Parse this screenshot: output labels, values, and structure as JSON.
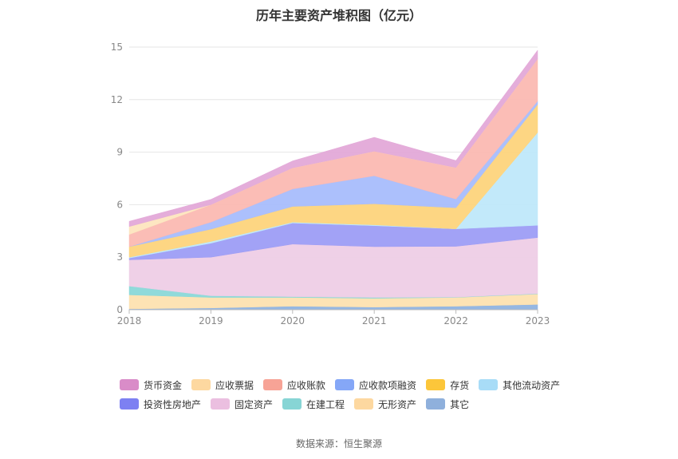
{
  "chart_data": {
    "type": "area",
    "stacked": true,
    "title": "历年主要资产堆积图（亿元）",
    "source": "数据来源：恒生聚源",
    "categories": [
      "2018",
      "2019",
      "2020",
      "2021",
      "2022",
      "2023"
    ],
    "ylim": [
      0,
      15
    ],
    "yticks": [
      "0",
      "3",
      "6",
      "9",
      "12",
      "15"
    ],
    "grid": true,
    "legend_position": "bottom",
    "series": [
      {
        "name": "其它",
        "color": "#8fb3e0",
        "values": [
          0.05,
          0.1,
          0.2,
          0.15,
          0.2,
          0.3
        ]
      },
      {
        "name": "无形资产",
        "color": "#fde1b0",
        "values": [
          0.8,
          0.6,
          0.5,
          0.5,
          0.5,
          0.6
        ]
      },
      {
        "name": "在建工程",
        "color": "#8ad8d8",
        "values": [
          0.5,
          0.1,
          0.05,
          0.05,
          0.02,
          0.02
        ]
      },
      {
        "name": "固定资产",
        "color": "#eecde6",
        "values": [
          1.5,
          2.2,
          3.0,
          2.9,
          2.9,
          3.2
        ]
      },
      {
        "name": "投资性房地产",
        "color": "#9d9df5",
        "values": [
          0.1,
          0.8,
          1.2,
          1.2,
          1.0,
          0.7
        ]
      },
      {
        "name": "其他流动资产",
        "color": "#bfe8fa",
        "values": [
          0.05,
          0.1,
          0.05,
          0.05,
          0.0,
          5.3
        ]
      },
      {
        "name": "存货",
        "color": "#fdd47c",
        "values": [
          0.6,
          0.7,
          0.9,
          1.2,
          1.2,
          1.6
        ]
      },
      {
        "name": "应收款项融资",
        "color": "#a8bdfc",
        "values": [
          0.0,
          0.4,
          1.0,
          1.6,
          0.5,
          0.2
        ]
      },
      {
        "name": "应收账款",
        "color": "#fbb9b2",
        "values": [
          0.7,
          1.0,
          1.2,
          1.4,
          1.8,
          2.4
        ]
      },
      {
        "name": "应收票据",
        "color": "#fde5bf",
        "values": [
          0.45,
          0.0,
          0.0,
          0.0,
          0.0,
          0.0
        ]
      },
      {
        "name": "货币资金",
        "color": "#e3a9d8",
        "values": [
          0.3,
          0.3,
          0.4,
          0.8,
          0.4,
          0.5
        ]
      }
    ],
    "legend_order": [
      "货币资金",
      "应收票据",
      "应收账款",
      "应收款项融资",
      "存货",
      "其他流动资产",
      "投资性房地产",
      "固定资产",
      "在建工程",
      "无形资产",
      "其它"
    ],
    "legend_colors": {
      "货币资金": "#d98cc8",
      "应收票据": "#fdd8a0",
      "应收账款": "#f7a396",
      "应收款项融资": "#85a7f7",
      "存货": "#fcc63a",
      "其他流动资产": "#a8dcf7",
      "投资性房地产": "#7d80f2",
      "固定资产": "#ebbfe0",
      "在建工程": "#87d5d5",
      "无形资产": "#fdd8a0",
      "其它": "#8fb0dc"
    }
  }
}
